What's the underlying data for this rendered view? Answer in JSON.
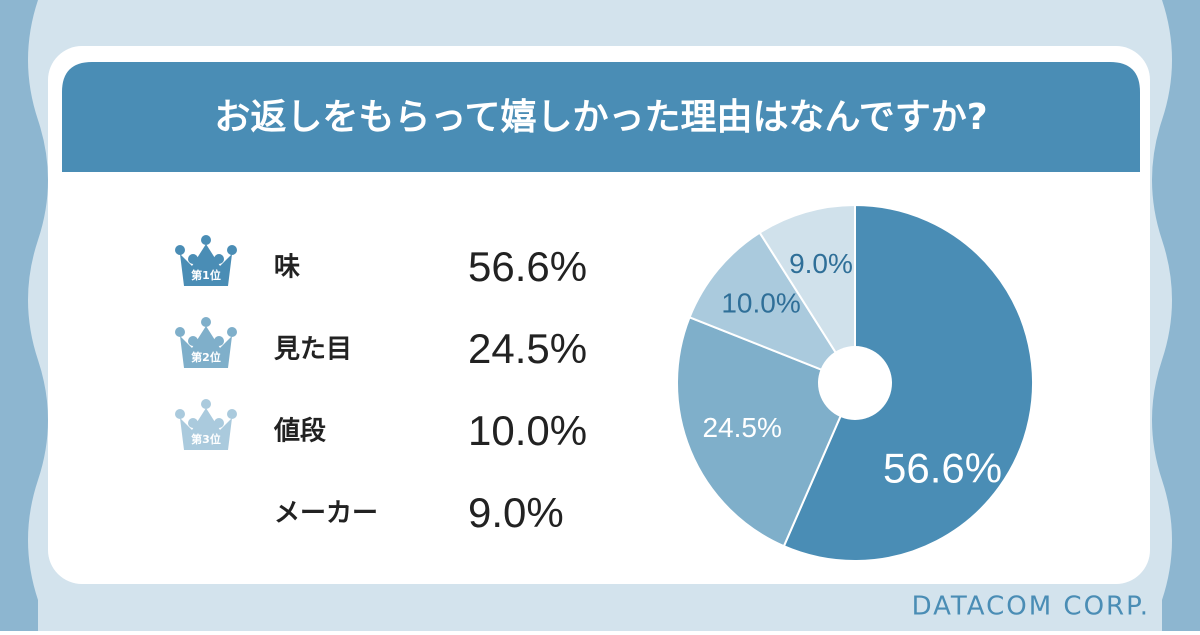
{
  "chart_data": {
    "type": "pie",
    "title": "お返しをもらって嬉しかった理由はなんですか?",
    "categories": [
      "味",
      "見た目",
      "値段",
      "メーカー"
    ],
    "values": [
      56.6,
      24.5,
      10.0,
      9.0
    ],
    "value_labels": [
      "56.6%",
      "24.5%",
      "10.0%",
      "9.0%"
    ],
    "colors": [
      "#4a8db5",
      "#7fafca",
      "#aacadd",
      "#d0e1eb"
    ],
    "badges": [
      "第1位",
      "第2位",
      "第3位"
    ],
    "source": "DATACOM CORP."
  }
}
